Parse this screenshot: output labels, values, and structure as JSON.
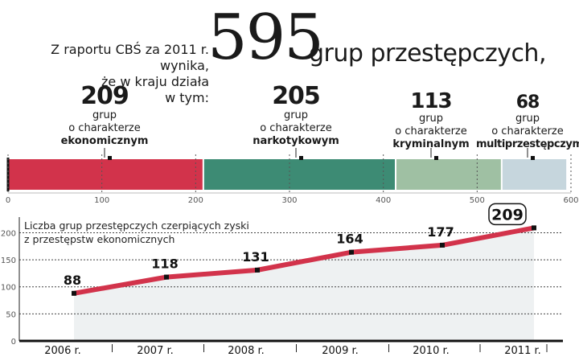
{
  "header": {
    "intro_line1": "Z raportu CBŚ za 2011 r. wynika,",
    "intro_line2": "że w kraju działa",
    "intro_line3": "w tym:",
    "big_number": "595",
    "big_label": "grup przestępczych,"
  },
  "colors": {
    "accent": "#d2334b",
    "ekonomiczne": "#d2334b",
    "narkotykowe": "#3d8b74",
    "kryminalne": "#9fc0a3",
    "multiprzestepcze": "#c6d6dd",
    "area": "#eef1f2"
  },
  "chart_data": [
    {
      "type": "bar",
      "orientation": "horizontal-stacked",
      "xlim": [
        0,
        600
      ],
      "x_ticks": [
        "0",
        "100",
        "200",
        "300",
        "400",
        "500",
        "600"
      ],
      "categories": [
        {
          "value": 209,
          "count": "209",
          "line1": "grup",
          "line2": "o charakterze",
          "line3": "ekonomicznym",
          "color": "#d2334b"
        },
        {
          "value": 205,
          "count": "205",
          "line1": "grup",
          "line2": "o charakterze",
          "line3": "narkotykowym",
          "color": "#3d8b74"
        },
        {
          "value": 113,
          "count": "113",
          "line1": "grup",
          "line2": "o charakterze",
          "line3": "kryminalnym",
          "color": "#9fc0a3"
        },
        {
          "value": 68,
          "count": "68",
          "line1": "grup",
          "line2": "o charakterze",
          "line3": "multiprzestępczym",
          "color": "#c6d6dd"
        }
      ]
    },
    {
      "type": "line",
      "title_line1": "Liczba grup przestępczych czerpiących zyski",
      "title_line2": "z przestępstw ekonomicznych",
      "x": [
        "2006 r.",
        "2007 r.",
        "2008 r.",
        "2009 r.",
        "2010 r.",
        "2011 r."
      ],
      "values": [
        88,
        118,
        131,
        164,
        177,
        209
      ],
      "labels": [
        "88",
        "118",
        "131",
        "164",
        "177",
        "209"
      ],
      "ylim": [
        0,
        220
      ],
      "y_ticks": [
        "0",
        "50",
        "100",
        "150",
        "200"
      ],
      "grid": "horizontal-dashed",
      "highlight_last": true
    }
  ]
}
